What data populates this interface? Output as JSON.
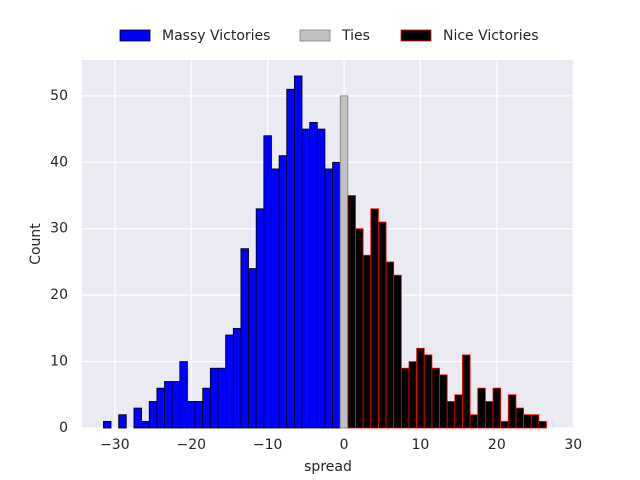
{
  "chart_data": {
    "type": "histogram",
    "xlabel": "spread",
    "ylabel": "Count",
    "xlim": [
      -34.3,
      30.1
    ],
    "ylim": [
      0,
      55.4
    ],
    "xticks": [
      {
        "value": -30,
        "label": "−30"
      },
      {
        "value": -20,
        "label": "−20"
      },
      {
        "value": -10,
        "label": "−10"
      },
      0,
      10,
      20,
      30
    ],
    "yticks": [
      0,
      10,
      20,
      30,
      40,
      50
    ],
    "grid": true,
    "legend": "top",
    "series": [
      {
        "name": "Massy Victories",
        "color": "#0000ff",
        "edgecolor": "#000000",
        "bins": [
          -31.5,
          -30.5,
          -29.5,
          -28.5,
          -27.5,
          -26.5,
          -25.5,
          -24.5,
          -23.5,
          -22.5,
          -21.5,
          -20.5,
          -19.5,
          -18.5,
          -17.5,
          -16.5,
          -15.5,
          -14.5,
          -13.5,
          -12.5,
          -11.5,
          -10.5,
          -9.5,
          -8.5,
          -7.5,
          -6.5,
          -5.5,
          -4.5,
          -3.5,
          -2.5,
          -1.5,
          -0.5
        ],
        "values": [
          1,
          0,
          2,
          0,
          3,
          1,
          4,
          6,
          7,
          7,
          10,
          4,
          4,
          6,
          9,
          9,
          14,
          15,
          27,
          24,
          33,
          44,
          39,
          41,
          51,
          53,
          45,
          46,
          45,
          39,
          40
        ]
      },
      {
        "name": "Ties",
        "color": "#c0c0c0",
        "edgecolor": "#808080",
        "bins": [
          -0.5,
          0.5
        ],
        "values": [
          50
        ]
      },
      {
        "name": "Nice Victories",
        "color": "#000000",
        "edgecolor": "#ff0000",
        "bins": [
          0.5,
          1.5,
          2.5,
          3.5,
          4.5,
          5.5,
          6.5,
          7.5,
          8.5,
          9.5,
          10.5,
          11.5,
          12.5,
          13.5,
          14.5,
          15.5,
          16.5,
          17.5,
          18.5,
          19.5,
          20.5,
          21.5,
          22.5,
          23.5,
          24.5,
          25.5,
          26.5
        ],
        "values": [
          35,
          30,
          26,
          33,
          31,
          25,
          23,
          9,
          10,
          12,
          11,
          9,
          8,
          4,
          5,
          11,
          2,
          6,
          4,
          6,
          1,
          5,
          3,
          2,
          2,
          1
        ]
      }
    ]
  }
}
